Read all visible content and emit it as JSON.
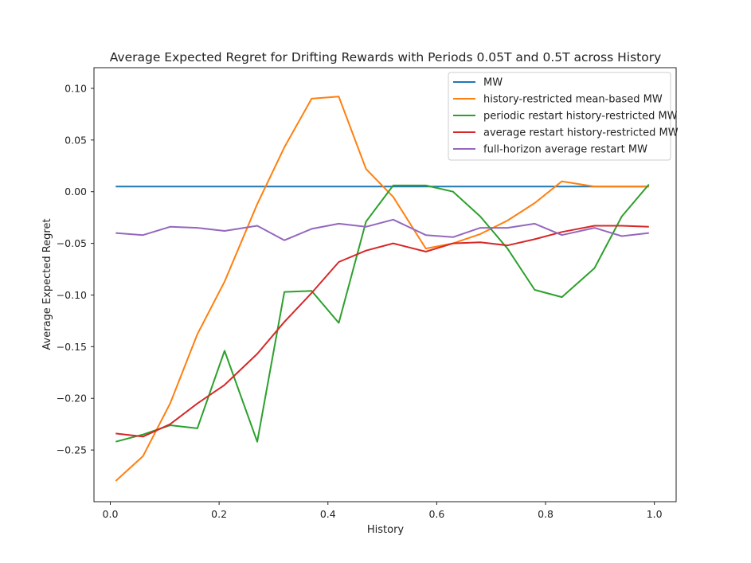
{
  "chart_data": {
    "type": "line",
    "title": "Average Expected Regret for Drifting Rewards with Periods 0.05T and 0.5T across History",
    "xlabel": "History",
    "ylabel": "Average Expected Regret",
    "xlim": [
      -0.03,
      1.04
    ],
    "ylim": [
      -0.3,
      0.12
    ],
    "x_ticks": [
      0.0,
      0.2,
      0.4,
      0.6,
      0.8,
      1.0
    ],
    "x_tick_labels": [
      "0.0",
      "0.2",
      "0.4",
      "0.6",
      "0.8",
      "1.0"
    ],
    "y_ticks": [
      0.1,
      0.05,
      0.0,
      -0.05,
      -0.1,
      -0.15,
      -0.2,
      -0.25
    ],
    "y_tick_labels": [
      "0.10",
      "0.05",
      "0.00",
      "−0.05",
      "−0.10",
      "−0.15",
      "−0.20",
      "−0.25"
    ],
    "grid": false,
    "legend_position": "top-right",
    "x": [
      0.01,
      0.06,
      0.11,
      0.16,
      0.21,
      0.27,
      0.32,
      0.37,
      0.42,
      0.47,
      0.52,
      0.58,
      0.63,
      0.68,
      0.73,
      0.78,
      0.83,
      0.89,
      0.94,
      0.99
    ],
    "series": [
      {
        "name": "MW",
        "color": "#1f77b4",
        "values": [
          0.005,
          0.005,
          0.005,
          0.005,
          0.005,
          0.005,
          0.005,
          0.005,
          0.005,
          0.005,
          0.005,
          0.005,
          0.005,
          0.005,
          0.005,
          0.005,
          0.005,
          0.005,
          0.005,
          0.005
        ]
      },
      {
        "name": "history-restricted mean-based MW",
        "color": "#ff7f0e",
        "values": [
          -0.28,
          -0.256,
          -0.205,
          -0.138,
          -0.087,
          -0.012,
          0.043,
          0.09,
          0.092,
          0.022,
          -0.005,
          -0.055,
          -0.05,
          -0.041,
          -0.028,
          -0.011,
          0.01,
          0.005,
          0.005,
          0.005
        ]
      },
      {
        "name": "periodic restart history-restricted MW",
        "color": "#2ca02c",
        "values": [
          -0.242,
          -0.235,
          -0.226,
          -0.229,
          -0.154,
          -0.242,
          -0.097,
          -0.096,
          -0.127,
          -0.029,
          0.006,
          0.006,
          0.0,
          -0.024,
          -0.055,
          -0.095,
          -0.102,
          -0.074,
          -0.024,
          0.007
        ]
      },
      {
        "name": "average restart history-restricted MW",
        "color": "#d62728",
        "values": [
          -0.234,
          -0.237,
          -0.225,
          -0.205,
          -0.187,
          -0.157,
          -0.126,
          -0.098,
          -0.068,
          -0.057,
          -0.05,
          -0.058,
          -0.05,
          -0.049,
          -0.052,
          -0.046,
          -0.039,
          -0.033,
          -0.033,
          -0.034
        ]
      },
      {
        "name": "full-horizon average restart MW",
        "color": "#9467bd",
        "values": [
          -0.04,
          -0.042,
          -0.034,
          -0.035,
          -0.038,
          -0.033,
          -0.047,
          -0.036,
          -0.031,
          -0.034,
          -0.027,
          -0.042,
          -0.044,
          -0.035,
          -0.035,
          -0.031,
          -0.042,
          -0.035,
          -0.043,
          -0.04
        ]
      }
    ]
  }
}
